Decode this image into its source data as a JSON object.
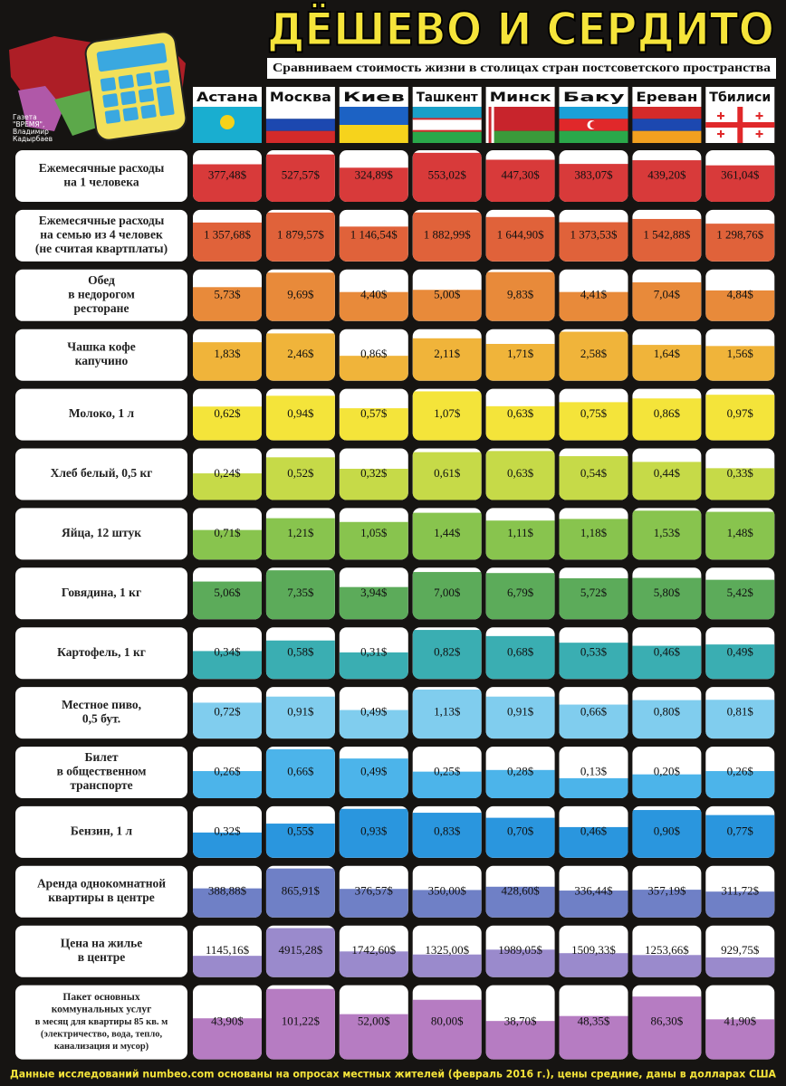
{
  "header": {
    "title": "ДЁШЕВО И СЕРДИТО",
    "subtitle": "Сравниваем стоимость жизни в столицах стран постсоветского пространства",
    "credit": [
      "Газета",
      "\"ВРЕМЯ\",",
      "Владимир",
      "Кадырбаев"
    ]
  },
  "cities": [
    "Астана",
    "Москва",
    "Киев",
    "Ташкент",
    "Минск",
    "Баку",
    "Ереван",
    "Тбилиси"
  ],
  "rows": [
    {
      "label": [
        "Ежемесячные расходы",
        "на 1 человека"
      ],
      "color": "#d83a3a",
      "values": [
        377.48,
        527.57,
        324.89,
        553.02,
        447.3,
        383.07,
        439.2,
        361.04
      ],
      "value_labels": [
        "377,48$",
        "527,57$",
        "324,89$",
        "553,02$",
        "447,30$",
        "383,07$",
        "439,20$",
        "361,04$"
      ]
    },
    {
      "label": [
        "Ежемесячные расходы",
        "на семью из 4 человек",
        "(не считая квартплаты)"
      ],
      "color": "#e0623a",
      "values": [
        1357.68,
        1879.57,
        1146.54,
        1882.99,
        1644.9,
        1373.53,
        1542.88,
        1298.76
      ],
      "value_labels": [
        "1 357,68$",
        "1 879,57$",
        "1 146,54$",
        "1 882,99$",
        "1 644,90$",
        "1 373,53$",
        "1 542,88$",
        "1 298,76$"
      ]
    },
    {
      "label": [
        "Обед",
        "в недорогом",
        "ресторане"
      ],
      "color": "#e88a3a",
      "values": [
        5.73,
        9.69,
        4.4,
        5.0,
        9.83,
        4.41,
        7.04,
        4.84
      ],
      "value_labels": [
        "5,73$",
        "9,69$",
        "4,40$",
        "5,00$",
        "9,83$",
        "4,41$",
        "7,04$",
        "4,84$"
      ]
    },
    {
      "label": [
        "Чашка кофе",
        "капучино"
      ],
      "color": "#f0b43a",
      "values": [
        1.83,
        2.46,
        0.86,
        2.11,
        1.71,
        2.58,
        1.64,
        1.56
      ],
      "value_labels": [
        "1,83$",
        "2,46$",
        "0,86$",
        "2,11$",
        "1,71$",
        "2,58$",
        "1,64$",
        "1,56$"
      ]
    },
    {
      "label": [
        "Молоко, 1 л"
      ],
      "color": "#f4e43a",
      "values": [
        0.62,
        0.94,
        0.57,
        1.07,
        0.63,
        0.75,
        0.86,
        0.97
      ],
      "value_labels": [
        "0,62$",
        "0,94$",
        "0,57$",
        "1,07$",
        "0,63$",
        "0,75$",
        "0,86$",
        "0,97$"
      ]
    },
    {
      "label": [
        "Хлеб белый, 0,5 кг"
      ],
      "color": "#c6da48",
      "values": [
        0.24,
        0.52,
        0.32,
        0.61,
        0.63,
        0.54,
        0.44,
        0.33
      ],
      "value_labels": [
        "0,24$",
        "0,52$",
        "0,32$",
        "0,61$",
        "0,63$",
        "0,54$",
        "0,44$",
        "0,33$"
      ]
    },
    {
      "label": [
        "Яйца, 12 штук"
      ],
      "color": "#88c44e",
      "values": [
        0.71,
        1.21,
        1.05,
        1.44,
        1.11,
        1.18,
        1.53,
        1.48
      ],
      "value_labels": [
        "0,71$",
        "1,21$",
        "1,05$",
        "1,44$",
        "1,11$",
        "1,18$",
        "1,53$",
        "1,48$"
      ]
    },
    {
      "label": [
        "Говядина, 1 кг"
      ],
      "color": "#5cab5a",
      "values": [
        5.06,
        7.35,
        3.94,
        7.0,
        6.79,
        5.72,
        5.8,
        5.42
      ],
      "value_labels": [
        "5,06$",
        "7,35$",
        "3,94$",
        "7,00$",
        "6,79$",
        "5,72$",
        "5,80$",
        "5,42$"
      ]
    },
    {
      "label": [
        "Картофель, 1 кг"
      ],
      "color": "#3aaeb2",
      "values": [
        0.34,
        0.58,
        0.31,
        0.82,
        0.68,
        0.53,
        0.46,
        0.49
      ],
      "value_labels": [
        "0,34$",
        "0,58$",
        "0,31$",
        "0,82$",
        "0,68$",
        "0,53$",
        "0,46$",
        "0,49$"
      ]
    },
    {
      "label": [
        "Местное пиво,",
        "0,5 бут."
      ],
      "color": "#80cdee",
      "values": [
        0.72,
        0.91,
        0.49,
        1.13,
        0.91,
        0.66,
        0.8,
        0.81
      ],
      "value_labels": [
        "0,72$",
        "0,91$",
        "0,49$",
        "1,13$",
        "0,91$",
        "0,66$",
        "0,80$",
        "0,81$"
      ]
    },
    {
      "label": [
        "Билет",
        "в общественном",
        "транспорте"
      ],
      "color": "#4cb4ea",
      "values": [
        0.26,
        0.66,
        0.49,
        0.25,
        0.28,
        0.13,
        0.2,
        0.26
      ],
      "value_labels": [
        "0,26$",
        "0,66$",
        "0,49$",
        "0,25$",
        "0,28$",
        "0,13$",
        "0,20$",
        "0,26$"
      ]
    },
    {
      "label": [
        "Бензин, 1 л"
      ],
      "color": "#2a96de",
      "values": [
        0.32,
        0.55,
        0.93,
        0.83,
        0.7,
        0.46,
        0.9,
        0.77
      ],
      "value_labels": [
        "0,32$",
        "0,55$",
        "0,93$",
        "0,83$",
        "0,70$",
        "0,46$",
        "0,90$",
        "0,77$"
      ]
    },
    {
      "label": [
        "Аренда однокомнатной",
        "квартиры в центре"
      ],
      "color": "#6f80c6",
      "values": [
        388.88,
        865.91,
        376.57,
        350.0,
        428.6,
        336.44,
        357.19,
        311.72
      ],
      "value_labels": [
        "388,88$",
        "865,91$",
        "376,57$",
        "350,00$",
        "428,60$",
        "336,44$",
        "357,19$",
        "311,72$"
      ]
    },
    {
      "label": [
        "Цена на жилье",
        "в центре"
      ],
      "color": "#9a8acc",
      "values": [
        1145.16,
        4915.28,
        1742.6,
        1325.0,
        1989.05,
        1509.33,
        1253.66,
        929.75
      ],
      "value_labels": [
        "1145,16$",
        "4915,28$",
        "1742,60$",
        "1325,00$",
        "1989,05$",
        "1509,33$",
        "1253,66$",
        "929,75$"
      ]
    },
    {
      "label": [
        "Пакет основных",
        "коммунальных услуг",
        "в месяц для квартиры 85 кв. м",
        "(электричество, вода, тепло,",
        "канализация и мусор)"
      ],
      "color": "#b67cc2",
      "values": [
        43.9,
        101.22,
        52.0,
        80.0,
        38.7,
        48.35,
        86.3,
        41.9
      ],
      "value_labels": [
        "43,90$",
        "101,22$",
        "52,00$",
        "80,00$",
        "38,70$",
        "48,35$",
        "86,30$",
        "41,90$"
      ]
    }
  ],
  "footer": "Данные исследований numbeo.com основаны на опросах местных жителей (февраль 2016 г.), цены средние, даны в долларах США"
}
